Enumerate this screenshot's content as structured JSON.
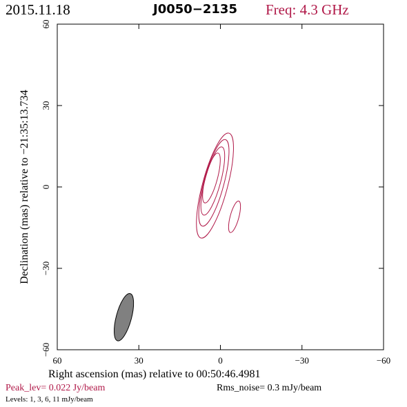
{
  "header": {
    "date": "2015.11.18",
    "source": "J0050−2135",
    "freq": "Freq: 4.3 GHz"
  },
  "footer": {
    "peak": "Peak_lev=  0.022 Jy/beam",
    "rms": "Rms_noise=   0.3 mJy/beam",
    "levels": "Levels:   1,   3,   6,   11 mJy/beam"
  },
  "colors": {
    "accent": "#b01848",
    "contour": "#b01848",
    "beam_fill": "#808080",
    "axis": "#000000"
  },
  "chart_data": {
    "type": "contour",
    "title": "J0050−2135",
    "xlabel": "Right ascension (mas) relative to 00:50:46.4981",
    "ylabel": "Declination (mas) relative to −21:35:13.734",
    "xlim": [
      60,
      -60
    ],
    "ylim": [
      -60,
      60
    ],
    "xticks": [
      60,
      30,
      0,
      -30,
      -60
    ],
    "yticks": [
      60,
      30,
      0,
      -30,
      -60
    ],
    "xtick_labels": [
      "60",
      "30",
      "0",
      "−30",
      "−60"
    ],
    "ytick_labels": [
      "60",
      "30",
      "0",
      "−30",
      "−60"
    ],
    "contour_levels_mJy": [
      1,
      3,
      6,
      11
    ],
    "peak_Jy_per_beam": 0.022,
    "rms_mJy_per_beam": 0.3,
    "contours": [
      {
        "level": 1,
        "cx": 2.0,
        "cy": 0.5,
        "a": 4.6,
        "b": 20.0,
        "pa_deg": 15
      },
      {
        "level": 3,
        "cx": 2.4,
        "cy": 1.5,
        "a": 3.7,
        "b": 16.5,
        "pa_deg": 15
      },
      {
        "level": 6,
        "cx": 2.8,
        "cy": 2.2,
        "a": 2.9,
        "b": 13.0,
        "pa_deg": 15
      },
      {
        "level": 11,
        "cx": 3.3,
        "cy": 3.3,
        "a": 2.2,
        "b": 9.5,
        "pa_deg": 15
      },
      {
        "level": 1,
        "cx": -5.2,
        "cy": -11.0,
        "a": 1.6,
        "b": 6.0,
        "pa_deg": 15
      }
    ],
    "beam": {
      "cx": 35.5,
      "cy": -48.0,
      "major": 18.0,
      "minor": 5.6,
      "pa_deg": 15
    },
    "grid": false
  }
}
